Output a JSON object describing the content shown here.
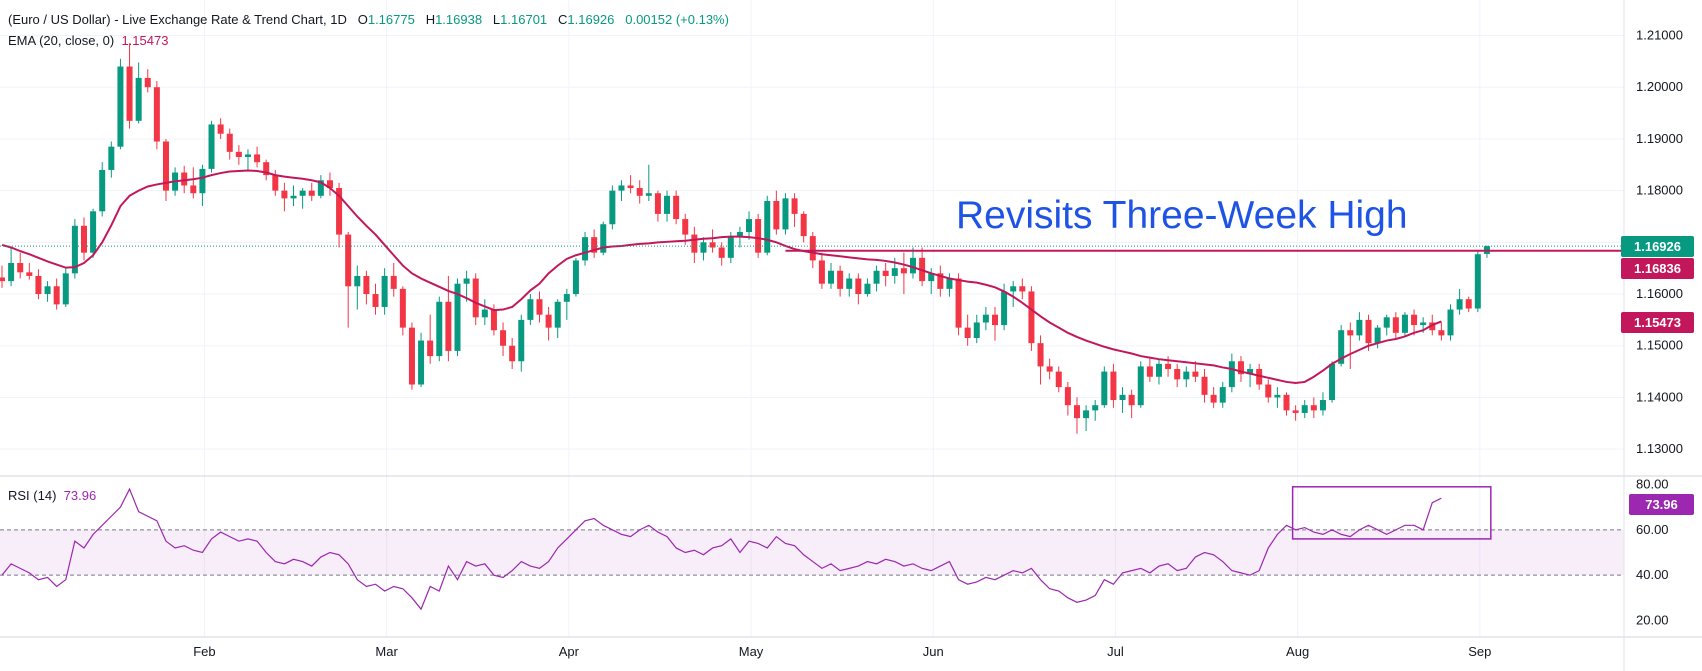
{
  "header": {
    "title": "(Euro / US Dollar) - Live Exchange Rate & Trend Chart, 1D",
    "o_label": "O",
    "o_value": "1.16775",
    "h_label": "H",
    "h_value": "1.16938",
    "l_label": "L",
    "l_value": "1.16701",
    "c_label": "C",
    "c_value": "1.16926",
    "change": "0.00152 (+0.13%)"
  },
  "ema_legend": {
    "label": "EMA (20, close, 0)",
    "value": "1.15473"
  },
  "rsi_legend": {
    "label": "RSI (14)",
    "value": "73.96"
  },
  "price_tags": {
    "last": "1.16926",
    "resistance": "1.16836",
    "ema": "1.15473"
  },
  "rsi_tag": "73.96",
  "colors": {
    "up": "#089981",
    "down": "#f23645",
    "ema": "#c2185b",
    "annotation": "#1e53e5",
    "rsi": "#9c27b0"
  },
  "chart_data": {
    "type": "candlestick",
    "annotation": "Revisits Three-Week High",
    "price_axis": {
      "ticks": [
        "1.21000",
        "1.20000",
        "1.19000",
        "1.18000",
        "1.17000",
        "1.16000",
        "1.15000",
        "1.14000",
        "1.13000"
      ],
      "ylim": [
        1.125,
        1.213
      ]
    },
    "rsi_axis": {
      "ticks": [
        "80.00",
        "60.00",
        "40.00",
        "20.00"
      ],
      "ylim": [
        18,
        82
      ],
      "band": [
        40,
        60
      ]
    },
    "x_axis": {
      "months": [
        "Feb",
        "Mar",
        "Apr",
        "May",
        "Jun",
        "Jul",
        "Aug",
        "Sep"
      ],
      "month_day_index": [
        22,
        42,
        62,
        82,
        102,
        122,
        142,
        162
      ]
    },
    "resistance_level": 1.16836,
    "candles": [
      [
        1.1632,
        1.1655,
        1.1612,
        1.1625
      ],
      [
        1.1625,
        1.169,
        1.1615,
        1.166
      ],
      [
        1.166,
        1.168,
        1.163,
        1.1642
      ],
      [
        1.1642,
        1.166,
        1.1628,
        1.1635
      ],
      [
        1.1635,
        1.1648,
        1.159,
        1.16
      ],
      [
        1.16,
        1.1625,
        1.1585,
        1.1615
      ],
      [
        1.1615,
        1.163,
        1.157,
        1.158
      ],
      [
        1.158,
        1.165,
        1.1575,
        1.164
      ],
      [
        1.164,
        1.1745,
        1.163,
        1.1732
      ],
      [
        1.1732,
        1.1748,
        1.1665,
        1.168
      ],
      [
        1.168,
        1.1765,
        1.167,
        1.176
      ],
      [
        1.176,
        1.1855,
        1.175,
        1.184
      ],
      [
        1.184,
        1.1895,
        1.1825,
        1.1885
      ],
      [
        1.1885,
        1.2055,
        1.188,
        1.204
      ],
      [
        1.204,
        1.2085,
        1.192,
        1.1935
      ],
      [
        1.1935,
        1.2048,
        1.193,
        1.2018
      ],
      [
        1.2018,
        1.2035,
        1.199,
        1.2
      ],
      [
        1.2,
        1.2012,
        1.188,
        1.1895
      ],
      [
        1.1895,
        1.19,
        1.178,
        1.18
      ],
      [
        1.18,
        1.1845,
        1.179,
        1.1835
      ],
      [
        1.1835,
        1.1848,
        1.1795,
        1.181
      ],
      [
        1.181,
        1.1845,
        1.1785,
        1.1795
      ],
      [
        1.1795,
        1.185,
        1.177,
        1.1842
      ],
      [
        1.1842,
        1.1935,
        1.1835,
        1.1928
      ],
      [
        1.1928,
        1.194,
        1.19,
        1.191
      ],
      [
        1.191,
        1.192,
        1.186,
        1.1875
      ],
      [
        1.1875,
        1.1888,
        1.185,
        1.1865
      ],
      [
        1.1865,
        1.188,
        1.184,
        1.187
      ],
      [
        1.187,
        1.1885,
        1.1845,
        1.1855
      ],
      [
        1.1855,
        1.186,
        1.182,
        1.183
      ],
      [
        1.183,
        1.184,
        1.179,
        1.18
      ],
      [
        1.18,
        1.1815,
        1.176,
        1.1785
      ],
      [
        1.1785,
        1.181,
        1.177,
        1.179
      ],
      [
        1.179,
        1.1805,
        1.1765,
        1.18
      ],
      [
        1.18,
        1.1815,
        1.178,
        1.179
      ],
      [
        1.179,
        1.183,
        1.1785,
        1.182
      ],
      [
        1.182,
        1.1835,
        1.179,
        1.1805
      ],
      [
        1.1805,
        1.1815,
        1.169,
        1.1715
      ],
      [
        1.1715,
        1.172,
        1.1535,
        1.1615
      ],
      [
        1.1615,
        1.1655,
        1.157,
        1.1635
      ],
      [
        1.1635,
        1.1645,
        1.158,
        1.16
      ],
      [
        1.16,
        1.162,
        1.156,
        1.1575
      ],
      [
        1.1575,
        1.165,
        1.156,
        1.1635
      ],
      [
        1.1635,
        1.166,
        1.1595,
        1.161
      ],
      [
        1.161,
        1.1615,
        1.152,
        1.1535
      ],
      [
        1.1535,
        1.1545,
        1.1415,
        1.1425
      ],
      [
        1.1425,
        1.1525,
        1.142,
        1.151
      ],
      [
        1.151,
        1.156,
        1.1465,
        1.148
      ],
      [
        1.148,
        1.1595,
        1.147,
        1.1585
      ],
      [
        1.1585,
        1.1635,
        1.147,
        1.149
      ],
      [
        1.149,
        1.163,
        1.148,
        1.162
      ],
      [
        1.162,
        1.1645,
        1.1585,
        1.163
      ],
      [
        1.163,
        1.164,
        1.154,
        1.1555
      ],
      [
        1.1555,
        1.159,
        1.154,
        1.157
      ],
      [
        1.157,
        1.158,
        1.152,
        1.153
      ],
      [
        1.153,
        1.1545,
        1.148,
        1.15
      ],
      [
        1.15,
        1.1515,
        1.1455,
        1.147
      ],
      [
        1.147,
        1.156,
        1.145,
        1.155
      ],
      [
        1.155,
        1.16,
        1.154,
        1.159
      ],
      [
        1.159,
        1.1605,
        1.1545,
        1.156
      ],
      [
        1.156,
        1.1575,
        1.151,
        1.1535
      ],
      [
        1.1535,
        1.159,
        1.1515,
        1.1585
      ],
      [
        1.1585,
        1.161,
        1.155,
        1.16
      ],
      [
        1.16,
        1.167,
        1.1595,
        1.1665
      ],
      [
        1.1665,
        1.172,
        1.1655,
        1.171
      ],
      [
        1.171,
        1.1725,
        1.167,
        1.168
      ],
      [
        1.168,
        1.174,
        1.1675,
        1.1735
      ],
      [
        1.1735,
        1.181,
        1.1725,
        1.18
      ],
      [
        1.18,
        1.182,
        1.178,
        1.181
      ],
      [
        1.181,
        1.183,
        1.1795,
        1.1805
      ],
      [
        1.1805,
        1.182,
        1.1775,
        1.179
      ],
      [
        1.179,
        1.185,
        1.178,
        1.1795
      ],
      [
        1.1795,
        1.18,
        1.174,
        1.1755
      ],
      [
        1.1755,
        1.18,
        1.174,
        1.179
      ],
      [
        1.179,
        1.18,
        1.1735,
        1.1745
      ],
      [
        1.1745,
        1.1755,
        1.1695,
        1.1715
      ],
      [
        1.1715,
        1.173,
        1.166,
        1.168
      ],
      [
        1.168,
        1.171,
        1.1665,
        1.17
      ],
      [
        1.17,
        1.1725,
        1.168,
        1.169
      ],
      [
        1.169,
        1.17,
        1.1655,
        1.167
      ],
      [
        1.167,
        1.172,
        1.166,
        1.171
      ],
      [
        1.171,
        1.173,
        1.169,
        1.172
      ],
      [
        1.172,
        1.176,
        1.1705,
        1.1745
      ],
      [
        1.1745,
        1.1755,
        1.167,
        1.168
      ],
      [
        1.168,
        1.179,
        1.1675,
        1.178
      ],
      [
        1.178,
        1.18,
        1.1715,
        1.1725
      ],
      [
        1.1725,
        1.1795,
        1.1715,
        1.1785
      ],
      [
        1.1785,
        1.1795,
        1.173,
        1.1755
      ],
      [
        1.1755,
        1.176,
        1.17,
        1.1712
      ],
      [
        1.1712,
        1.172,
        1.165,
        1.1665
      ],
      [
        1.1665,
        1.168,
        1.161,
        1.162
      ],
      [
        1.162,
        1.166,
        1.161,
        1.1645
      ],
      [
        1.1645,
        1.1655,
        1.1595,
        1.161
      ],
      [
        1.161,
        1.164,
        1.1595,
        1.163
      ],
      [
        1.163,
        1.164,
        1.158,
        1.16
      ],
      [
        1.16,
        1.163,
        1.1595,
        1.162
      ],
      [
        1.162,
        1.1655,
        1.1605,
        1.1645
      ],
      [
        1.1645,
        1.166,
        1.1615,
        1.1635
      ],
      [
        1.1635,
        1.167,
        1.162,
        1.165
      ],
      [
        1.165,
        1.168,
        1.16,
        1.164
      ],
      [
        1.164,
        1.169,
        1.163,
        1.167
      ],
      [
        1.167,
        1.169,
        1.1615,
        1.1625
      ],
      [
        1.1625,
        1.165,
        1.16,
        1.164
      ],
      [
        1.164,
        1.1655,
        1.1595,
        1.161
      ],
      [
        1.161,
        1.164,
        1.1595,
        1.163
      ],
      [
        1.163,
        1.164,
        1.152,
        1.1535
      ],
      [
        1.1535,
        1.156,
        1.15,
        1.1515
      ],
      [
        1.1515,
        1.156,
        1.1505,
        1.1545
      ],
      [
        1.1545,
        1.1575,
        1.153,
        1.156
      ],
      [
        1.156,
        1.1575,
        1.151,
        1.154
      ],
      [
        1.154,
        1.162,
        1.153,
        1.1605
      ],
      [
        1.1605,
        1.1625,
        1.1575,
        1.1615
      ],
      [
        1.1615,
        1.163,
        1.159,
        1.1605
      ],
      [
        1.1605,
        1.1615,
        1.149,
        1.1505
      ],
      [
        1.1505,
        1.152,
        1.1425,
        1.146
      ],
      [
        1.146,
        1.1475,
        1.1435,
        1.145
      ],
      [
        1.145,
        1.146,
        1.141,
        1.142
      ],
      [
        1.142,
        1.143,
        1.1365,
        1.1385
      ],
      [
        1.1385,
        1.14,
        1.133,
        1.136
      ],
      [
        1.136,
        1.1385,
        1.1335,
        1.1375
      ],
      [
        1.1375,
        1.1395,
        1.1355,
        1.1385
      ],
      [
        1.1385,
        1.146,
        1.138,
        1.145
      ],
      [
        1.145,
        1.1465,
        1.138,
        1.1395
      ],
      [
        1.1395,
        1.142,
        1.137,
        1.1405
      ],
      [
        1.1405,
        1.1415,
        1.136,
        1.1385
      ],
      [
        1.1385,
        1.147,
        1.138,
        1.146
      ],
      [
        1.146,
        1.1475,
        1.143,
        1.144
      ],
      [
        1.144,
        1.1475,
        1.1425,
        1.1465
      ],
      [
        1.1465,
        1.148,
        1.144,
        1.1455
      ],
      [
        1.1455,
        1.1465,
        1.142,
        1.1435
      ],
      [
        1.1435,
        1.146,
        1.142,
        1.145
      ],
      [
        1.145,
        1.147,
        1.143,
        1.144
      ],
      [
        1.144,
        1.1455,
        1.139,
        1.1405
      ],
      [
        1.1405,
        1.142,
        1.138,
        1.139
      ],
      [
        1.139,
        1.143,
        1.138,
        1.142
      ],
      [
        1.142,
        1.1485,
        1.141,
        1.147
      ],
      [
        1.147,
        1.148,
        1.143,
        1.1445
      ],
      [
        1.1445,
        1.1465,
        1.142,
        1.1455
      ],
      [
        1.1455,
        1.1465,
        1.1415,
        1.1425
      ],
      [
        1.1425,
        1.1435,
        1.139,
        1.14
      ],
      [
        1.14,
        1.142,
        1.138,
        1.1405
      ],
      [
        1.1405,
        1.141,
        1.1365,
        1.1375
      ],
      [
        1.1375,
        1.1385,
        1.1355,
        1.137
      ],
      [
        1.137,
        1.1395,
        1.136,
        1.1385
      ],
      [
        1.1385,
        1.14,
        1.136,
        1.1375
      ],
      [
        1.1375,
        1.141,
        1.1365,
        1.1395
      ],
      [
        1.1395,
        1.147,
        1.139,
        1.1465
      ],
      [
        1.1465,
        1.154,
        1.146,
        1.153
      ],
      [
        1.153,
        1.1545,
        1.1455,
        1.152
      ],
      [
        1.152,
        1.1565,
        1.151,
        1.155
      ],
      [
        1.155,
        1.156,
        1.149,
        1.1505
      ],
      [
        1.1505,
        1.154,
        1.1495,
        1.1535
      ],
      [
        1.1535,
        1.156,
        1.152,
        1.1555
      ],
      [
        1.1555,
        1.1565,
        1.1515,
        1.1525
      ],
      [
        1.1525,
        1.1565,
        1.152,
        1.156
      ],
      [
        1.156,
        1.157,
        1.152,
        1.154
      ],
      [
        1.154,
        1.1555,
        1.1525,
        1.1545
      ],
      [
        1.1545,
        1.156,
        1.152,
        1.153
      ],
      [
        1.153,
        1.1545,
        1.151,
        1.152
      ],
      [
        1.152,
        1.158,
        1.151,
        1.157
      ],
      [
        1.157,
        1.161,
        1.156,
        1.159
      ],
      [
        1.159,
        1.1595,
        1.1565,
        1.1572
      ],
      [
        1.1572,
        1.1685,
        1.1565,
        1.1677
      ],
      [
        1.16775,
        1.16938,
        1.16701,
        1.16926
      ]
    ],
    "ema": [
      1.1695,
      1.169,
      1.1683,
      1.1677,
      1.167,
      1.1663,
      1.1657,
      1.1651,
      1.1652,
      1.166,
      1.1675,
      1.17,
      1.1733,
      1.177,
      1.179,
      1.18,
      1.1808,
      1.1812,
      1.1815,
      1.1818,
      1.182,
      1.1822,
      1.1825,
      1.183,
      1.1834,
      1.1837,
      1.1838,
      1.1839,
      1.1838,
      1.1835,
      1.183,
      1.1827,
      1.1825,
      1.1823,
      1.182,
      1.1816,
      1.1805,
      1.179,
      1.177,
      1.175,
      1.1732,
      1.1715,
      1.1695,
      1.1675,
      1.1655,
      1.164,
      1.163,
      1.1622,
      1.1614,
      1.1606,
      1.16,
      1.1592,
      1.1583,
      1.1576,
      1.1569,
      1.157,
      1.1575,
      1.159,
      1.1607,
      1.162,
      1.164,
      1.1655,
      1.1668,
      1.1675,
      1.168,
      1.1685,
      1.169,
      1.1692,
      1.1693,
      1.1695,
      1.1697,
      1.1698,
      1.17,
      1.1701,
      1.1702,
      1.1703,
      1.1705,
      1.1707,
      1.1708,
      1.171,
      1.1711,
      1.1711,
      1.171,
      1.1708,
      1.1705,
      1.17,
      1.1693,
      1.1687,
      1.1683,
      1.168,
      1.1677,
      1.1675,
      1.1673,
      1.1671,
      1.1669,
      1.1667,
      1.1666,
      1.1664,
      1.1661,
      1.1657,
      1.1652,
      1.1646,
      1.164,
      1.1635,
      1.163,
      1.1627,
      1.1624,
      1.1622,
      1.1618,
      1.1613,
      1.1605,
      1.1595,
      1.1583,
      1.157,
      1.1557,
      1.1545,
      1.1535,
      1.1525,
      1.1517,
      1.151,
      1.1504,
      1.1498,
      1.1493,
      1.1489,
      1.1485,
      1.148,
      1.1477,
      1.1474,
      1.1472,
      1.147,
      1.1468,
      1.1466,
      1.1464,
      1.1462,
      1.1458,
      1.1455,
      1.145,
      1.1446,
      1.1442,
      1.1438,
      1.1434,
      1.143,
      1.1428,
      1.143,
      1.144,
      1.1452,
      1.1465,
      1.1475,
      1.1484,
      1.1492,
      1.15,
      1.1505,
      1.151,
      1.1513,
      1.1518,
      1.1525,
      1.153,
      1.154,
      1.1547
    ],
    "rsi": [
      40,
      45,
      43,
      41,
      38,
      39,
      35,
      38,
      55,
      52,
      58,
      62,
      66,
      70,
      78,
      68,
      66,
      64,
      55,
      52,
      53,
      51,
      50,
      56,
      59,
      57,
      55,
      56,
      55,
      50,
      46,
      45,
      47,
      46,
      44,
      48,
      50,
      49,
      45,
      38,
      35,
      36,
      33,
      35,
      34,
      30,
      25,
      35,
      33,
      44,
      38,
      46,
      44,
      45,
      40,
      39,
      42,
      46,
      44,
      43,
      46,
      52,
      56,
      60,
      64,
      65,
      62,
      60,
      58,
      57,
      60,
      62,
      59,
      57,
      52,
      50,
      51,
      49,
      52,
      53,
      56,
      50,
      55,
      54,
      52,
      57,
      54,
      53,
      49,
      46,
      43,
      45,
      42,
      43,
      44,
      46,
      45,
      47,
      46,
      44,
      45,
      43,
      42,
      44,
      46,
      38,
      36,
      37,
      39,
      38,
      40,
      42,
      41,
      43,
      38,
      34,
      33,
      30,
      28,
      29,
      31,
      38,
      36,
      41,
      42,
      43,
      41,
      44,
      45,
      42,
      43,
      48,
      50,
      49,
      46,
      42,
      41,
      40,
      42,
      52,
      58,
      62,
      60,
      61,
      59,
      58,
      60,
      58,
      57,
      60,
      62,
      60,
      58,
      60,
      62,
      62,
      60,
      72,
      74
    ],
    "rsi_highlight": {
      "start_index": 142,
      "end_index": 162
    }
  }
}
